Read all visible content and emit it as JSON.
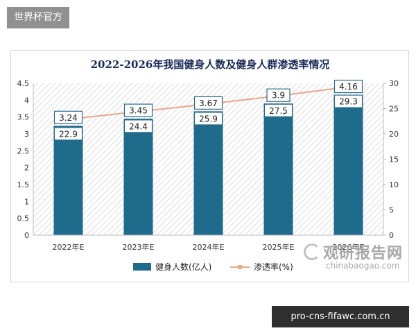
{
  "site_tag": "世界杯官方",
  "domain_label": "pro-cns-fifawc.com.cn",
  "watermark": {
    "cn": "观研报告网",
    "en": "chinabaogao.com",
    "icon": "magnifier-logo-icon"
  },
  "colors": {
    "bar": "#1f6b8c",
    "line": "#e8a68a",
    "label_border": "#2a6b8a",
    "title": "#1a2a5a"
  },
  "chart_data": {
    "type": "bar",
    "title": "2022-2026年我国健身人数及健身人群渗透率情况",
    "categories": [
      "2022年E",
      "2023年E",
      "2024年E",
      "2025年E",
      "2026年E"
    ],
    "series": [
      {
        "name": "健身人数(亿人)",
        "type": "bar",
        "axis": "left",
        "values": [
          3.24,
          3.45,
          3.67,
          3.9,
          4.16
        ]
      },
      {
        "name": "渗透率(%)",
        "type": "line",
        "axis": "right",
        "values": [
          22.9,
          24.4,
          25.9,
          27.5,
          29.3
        ]
      }
    ],
    "ylim_left": [
      0,
      4.5
    ],
    "yticks_left": [
      "0",
      "0.5",
      "1",
      "1.5",
      "2",
      "2.5",
      "3",
      "3.5",
      "4",
      "4.5"
    ],
    "ylim_right": [
      0,
      30
    ],
    "yticks_right": [
      "0",
      "5",
      "10",
      "15",
      "20",
      "25",
      "30"
    ],
    "legend_position": "bottom",
    "grid": false
  }
}
